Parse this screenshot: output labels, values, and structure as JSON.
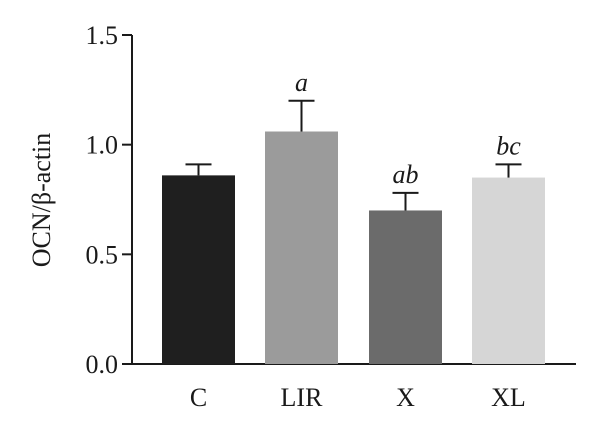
{
  "chart_data": {
    "type": "bar",
    "title": "",
    "xlabel": "",
    "ylabel": "OCN/β-actin",
    "ylim": [
      0,
      1.5
    ],
    "yticks": [
      "0.0",
      "0.5",
      "1.0",
      "1.5"
    ],
    "categories": [
      "C",
      "LIR",
      "X",
      "XL"
    ],
    "values": [
      0.86,
      1.06,
      0.7,
      0.85
    ],
    "error": [
      0.05,
      0.14,
      0.08,
      0.06
    ],
    "annotations": [
      "",
      "a",
      "ab",
      "bc"
    ],
    "colors": [
      "#1f1f1f",
      "#9b9b9b",
      "#6b6b6b",
      "#d6d6d6"
    ],
    "grid": false,
    "legend": "none"
  }
}
